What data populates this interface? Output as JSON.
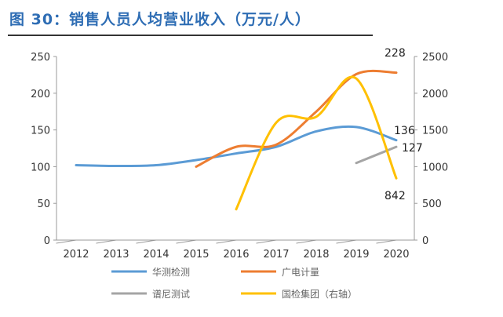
{
  "title": "图 30：销售人员人均营业收入（万元/人）",
  "chart_data": {
    "type": "line",
    "title": "图 30：销售人员人均营业收入（万元/人）",
    "categories": [
      "2012",
      "2013",
      "2014",
      "2015",
      "2016",
      "2017",
      "2018",
      "2019",
      "2020"
    ],
    "y_left": {
      "range": [
        0,
        250
      ],
      "ticks": [
        0,
        50,
        100,
        150,
        200,
        250
      ]
    },
    "y_right": {
      "range": [
        0,
        2500
      ],
      "ticks": [
        0,
        500,
        1000,
        1500,
        2000,
        2500
      ]
    },
    "grid": false,
    "legend_placement": "bottom",
    "series": [
      {
        "name": "华测检测",
        "axis": "left",
        "color": "#5b9bd5",
        "values": [
          102,
          101,
          102,
          109,
          118,
          127,
          148,
          154,
          136
        ]
      },
      {
        "name": "广电计量",
        "axis": "left",
        "color": "#ed7d31",
        "values": [
          null,
          null,
          null,
          100,
          127,
          130,
          175,
          226,
          228
        ]
      },
      {
        "name": "谱尼测试",
        "axis": "left",
        "color": "#a5a5a5",
        "values": [
          null,
          null,
          null,
          null,
          null,
          null,
          null,
          105,
          127
        ]
      },
      {
        "name": "国检集团（右轴）",
        "axis": "right",
        "color": "#ffc000",
        "values": [
          null,
          null,
          null,
          null,
          420,
          1600,
          1680,
          2200,
          842
        ]
      }
    ],
    "annotations": [
      "228",
      "136",
      "127",
      "842"
    ]
  }
}
